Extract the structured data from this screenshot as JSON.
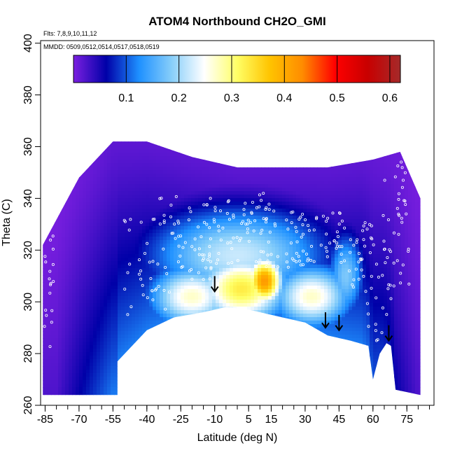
{
  "chart_data": {
    "type": "heatmap",
    "title": "ATOM4 Northbound CH2O_GMI",
    "notes": [
      "Flts: 7,8,9,10,11,12",
      "MMDD: 0509,0512,0514,0517,0518,0519"
    ],
    "xlabel": "Latitude (deg N)",
    "ylabel": "Theta (C)",
    "xlim": [
      -87,
      87
    ],
    "ylim": [
      260,
      401
    ],
    "x_ticks": [
      -85,
      -70,
      -55,
      -40,
      -25,
      -10,
      5,
      15,
      30,
      45,
      60,
      75
    ],
    "y_ticks": [
      260,
      280,
      300,
      320,
      340,
      360,
      380,
      400
    ],
    "colorbar": {
      "range": [
        0,
        0.62
      ],
      "ticks": [
        0.1,
        0.2,
        0.3,
        0.4,
        0.5,
        0.6
      ],
      "colors": [
        "#7b1fe0",
        "#0000a8",
        "#1e90ff",
        "#87cefa",
        "#ffffff",
        "#ffff66",
        "#ffc400",
        "#ff8c00",
        "#ff0000",
        "#c80000",
        "#a52a2a"
      ]
    },
    "region": {
      "lat_range": [
        -86,
        81
      ],
      "top_boundary": [
        [
          -86,
          322
        ],
        [
          -70,
          348
        ],
        [
          -55,
          362
        ],
        [
          -40,
          362
        ],
        [
          -20,
          356
        ],
        [
          0,
          352
        ],
        [
          20,
          352
        ],
        [
          40,
          352
        ],
        [
          60,
          355
        ],
        [
          72,
          358
        ],
        [
          81,
          340
        ]
      ],
      "bottom_boundary": [
        [
          -86,
          264
        ],
        [
          -53,
          264
        ],
        [
          -53,
          277
        ],
        [
          -40,
          289
        ],
        [
          -28,
          294
        ],
        [
          -15,
          296
        ],
        [
          -5,
          298
        ],
        [
          5,
          297
        ],
        [
          15,
          295
        ],
        [
          30,
          292
        ],
        [
          40,
          287
        ],
        [
          50,
          285
        ],
        [
          58,
          283
        ],
        [
          60,
          270
        ],
        [
          63,
          280
        ],
        [
          66,
          284
        ],
        [
          68,
          283
        ],
        [
          70,
          266
        ],
        [
          81,
          264
        ]
      ]
    },
    "hotspots": [
      {
        "lat": 12,
        "theta": 308,
        "value": 0.42,
        "sigma_lat": 6,
        "sigma_theta": 7
      },
      {
        "lat": 2,
        "theta": 305,
        "value": 0.33,
        "sigma_lat": 15,
        "sigma_theta": 10
      },
      {
        "lat": -20,
        "theta": 302,
        "value": 0.27,
        "sigma_lat": 14,
        "sigma_theta": 9
      },
      {
        "lat": 33,
        "theta": 302,
        "value": 0.27,
        "sigma_lat": 13,
        "sigma_theta": 9
      },
      {
        "lat": 0,
        "theta": 318,
        "value": 0.22,
        "sigma_lat": 28,
        "sigma_theta": 13
      },
      {
        "lat": 48,
        "theta": 310,
        "value": 0.18,
        "sigma_lat": 6,
        "sigma_theta": 12
      }
    ],
    "arrows": [
      {
        "lat": -10,
        "theta": 304
      },
      {
        "lat": 39,
        "theta": 290
      },
      {
        "lat": 45,
        "theta": 289
      },
      {
        "lat": 67,
        "theta": 285
      }
    ]
  }
}
